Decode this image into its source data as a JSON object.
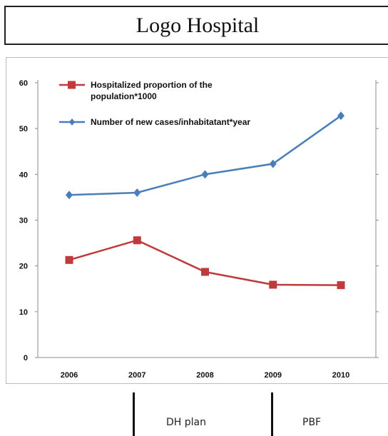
{
  "header": {
    "title": "Logo Hospital"
  },
  "chart_data": {
    "type": "line",
    "title": "",
    "xlabel": "",
    "ylabel": "",
    "categories": [
      "2006",
      "2007",
      "2008",
      "2009",
      "2010"
    ],
    "ylim": [
      0,
      60
    ],
    "y_ticks": [
      "0",
      "10",
      "20",
      "30",
      "40",
      "50",
      "60"
    ],
    "grid": false,
    "legend_position": "top-left",
    "series": [
      {
        "name": "Hospitalized proportion of the population*1000",
        "color": "#c0393b",
        "marker": "square",
        "values": [
          21.3,
          25.6,
          18.7,
          15.9,
          15.8
        ]
      },
      {
        "name": "Number of new cases/inhabitatant*year",
        "color": "#4a7ebb",
        "marker": "diamond",
        "values": [
          35.5,
          36.0,
          40.0,
          42.3,
          52.8
        ]
      }
    ],
    "legend_lines": [
      [
        "Hospitalized proportion of the",
        "population*1000"
      ],
      [
        "Number of new cases/inhabitatant*year"
      ]
    ]
  },
  "phases": [
    {
      "label": "DH plan"
    },
    {
      "label": "PBF"
    }
  ]
}
